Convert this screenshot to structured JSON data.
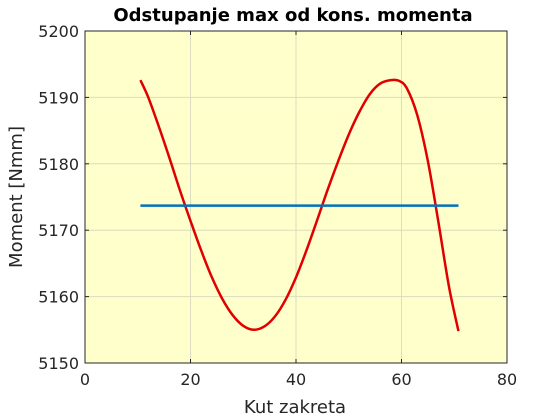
{
  "chart_data": {
    "type": "line",
    "title": "Odstupanje max od kons. momenta",
    "xlabel": "Kut zakreta",
    "ylabel": "Moment [Nmm]",
    "xlim": [
      0,
      80
    ],
    "ylim": [
      5150,
      5200
    ],
    "xticks": [
      0,
      20,
      40,
      60,
      80
    ],
    "yticks": [
      5150,
      5160,
      5170,
      5180,
      5190,
      5200
    ],
    "grid": true,
    "legend": "none",
    "colors": {
      "background": "#FFFFCC",
      "axes": "#262626",
      "grid": "#DCDCC0"
    },
    "series": [
      {
        "color": "#E00000",
        "x": [
          10.5,
          12,
          14,
          16,
          18,
          20,
          22,
          24,
          26,
          28,
          30,
          32,
          34,
          36,
          38,
          40,
          42,
          44,
          46,
          48,
          50,
          52,
          54,
          56,
          58,
          59.5,
          61,
          63,
          65,
          67,
          69,
          70.8
        ],
        "y": [
          5192.6,
          5190.0,
          5185.6,
          5180.9,
          5176.0,
          5171.4,
          5167.0,
          5163.0,
          5159.7,
          5157.2,
          5155.6,
          5155.0,
          5155.5,
          5157.0,
          5159.5,
          5162.9,
          5167.0,
          5171.5,
          5176.1,
          5180.4,
          5184.4,
          5187.8,
          5190.5,
          5192.1,
          5192.6,
          5192.5,
          5191.4,
          5187.3,
          5180.4,
          5171.2,
          5161.5,
          5154.8
        ]
      },
      {
        "color": "#0072BD",
        "x": [
          10.5,
          70.8
        ],
        "y": [
          5173.7,
          5173.7
        ]
      }
    ]
  }
}
